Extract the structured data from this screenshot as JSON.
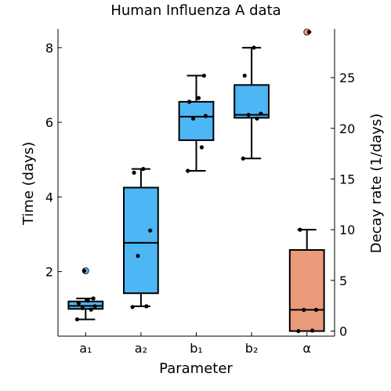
{
  "chart_data": {
    "type": "box",
    "title": "Human Influenza A data",
    "xlabel": "Parameter",
    "ylabel_left": "Time (days)",
    "ylabel_right": "Decay rate (1/days)",
    "categories": [
      "a₁",
      "a₂",
      "b₁",
      "b₂",
      "α"
    ],
    "left_axis": {
      "ylim": [
        0.27,
        8.5
      ],
      "ticks": [
        2,
        4,
        6,
        8
      ],
      "tick_labels": [
        "2",
        "4",
        "6",
        "8"
      ]
    },
    "right_axis": {
      "ylim": [
        -0.5,
        29.8
      ],
      "ticks": [
        0,
        5,
        10,
        15,
        20,
        25
      ],
      "tick_labels": [
        "0",
        "5",
        "10",
        "15",
        "20",
        "25"
      ]
    },
    "grid": false,
    "legend": "none",
    "series": [
      {
        "category": "a₁",
        "axis": "left",
        "box": {
          "whisker_low": 0.72,
          "q1": 1.0,
          "median": 1.08,
          "q3": 1.2,
          "whisker_high": 1.28
        },
        "outliers": [
          2.02
        ],
        "points": [
          0.72,
          0.98,
          1.02,
          1.07,
          1.15,
          1.22,
          1.28,
          2.02
        ]
      },
      {
        "category": "a₂",
        "axis": "left",
        "box": {
          "whisker_low": 1.07,
          "q1": 1.42,
          "median": 2.77,
          "q3": 4.25,
          "whisker_high": 4.75
        },
        "outliers": [],
        "points": [
          1.05,
          1.07,
          2.42,
          3.1,
          4.65,
          4.75
        ]
      },
      {
        "category": "b₁",
        "axis": "left",
        "box": {
          "whisker_low": 4.7,
          "q1": 5.52,
          "median": 6.15,
          "q3": 6.55,
          "whisker_high": 7.25
        },
        "outliers": [],
        "points": [
          4.7,
          5.33,
          6.1,
          6.17,
          6.55,
          6.65,
          7.25
        ]
      },
      {
        "category": "b₂",
        "axis": "left",
        "box": {
          "whisker_low": 5.03,
          "q1": 6.12,
          "median": 6.2,
          "q3": 7.0,
          "whisker_high": 8.0
        },
        "outliers": [],
        "points": [
          5.03,
          6.1,
          6.2,
          6.23,
          7.25,
          8.0
        ]
      },
      {
        "category": "α",
        "axis": "right",
        "box": {
          "whisker_low": 0.0,
          "q1": 0.0,
          "median": 2.1,
          "q3": 8.0,
          "whisker_high": 10.0
        },
        "outliers": [
          29.5
        ],
        "points": [
          0.0,
          0.05,
          2.1,
          2.1,
          10.0,
          29.5
        ]
      }
    ],
    "colors": {
      "time_box": "#4db6f5",
      "decay_box": "#ea9b7c",
      "points": "#000000",
      "axis": "#000000"
    }
  }
}
